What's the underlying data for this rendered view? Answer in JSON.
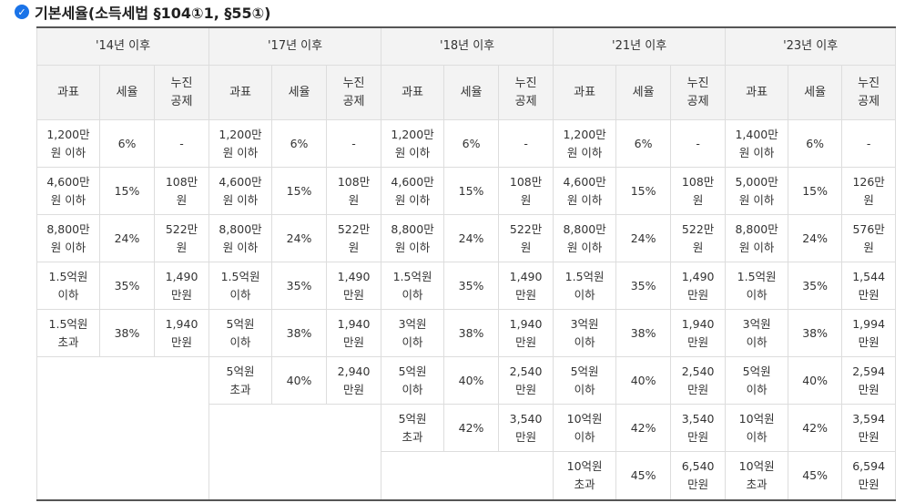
{
  "title": "기본세율(소득세법 §104①1, §55①)",
  "periods": [
    "'14년 이후",
    "'17년 이후",
    "'18년 이후",
    "'21년 이후",
    "'23년 이후"
  ],
  "subheaders": [
    "과표",
    "세율",
    "누진\n공제"
  ],
  "p14": [
    [
      "1,200만\n원 이하",
      "6%",
      "-"
    ],
    [
      "4,600만\n원 이하",
      "15%",
      "108만\n원"
    ],
    [
      "8,800만\n원 이하",
      "24%",
      "522만\n원"
    ],
    [
      "1.5억원\n이하",
      "35%",
      "1,490\n만원"
    ],
    [
      "1.5억원\n초과",
      "38%",
      "1,940\n만원"
    ]
  ],
  "p17": [
    [
      "1,200만\n원 이하",
      "6%",
      "-"
    ],
    [
      "4,600만\n원 이하",
      "15%",
      "108만\n원"
    ],
    [
      "8,800만\n원 이하",
      "24%",
      "522만\n원"
    ],
    [
      "1.5억원\n이하",
      "35%",
      "1,490\n만원"
    ],
    [
      "5억원\n이하",
      "38%",
      "1,940\n만원"
    ],
    [
      "5억원\n초과",
      "40%",
      "2,940\n만원"
    ]
  ],
  "p18": [
    [
      "1,200만\n원 이하",
      "6%",
      "-"
    ],
    [
      "4,600만\n원 이하",
      "15%",
      "108만\n원"
    ],
    [
      "8,800만\n원 이하",
      "24%",
      "522만\n원"
    ],
    [
      "1.5억원\n이하",
      "35%",
      "1,490\n만원"
    ],
    [
      "3억원\n이하",
      "38%",
      "1,940\n만원"
    ],
    [
      "5억원\n이하",
      "40%",
      "2,540\n만원"
    ],
    [
      "5억원\n초과",
      "42%",
      "3,540\n만원"
    ]
  ],
  "p21": [
    [
      "1,200만\n원 이하",
      "6%",
      "-"
    ],
    [
      "4,600만\n원 이하",
      "15%",
      "108만\n원"
    ],
    [
      "8,800만\n원 이하",
      "24%",
      "522만\n원"
    ],
    [
      "1.5억원\n이하",
      "35%",
      "1,490\n만원"
    ],
    [
      "3억원\n이하",
      "38%",
      "1,940\n만원"
    ],
    [
      "5억원\n이하",
      "40%",
      "2,540\n만원"
    ],
    [
      "10억원\n이하",
      "42%",
      "3,540\n만원"
    ],
    [
      "10억원\n초과",
      "45%",
      "6,540\n만원"
    ]
  ],
  "p23": [
    [
      "1,400만\n원 이하",
      "6%",
      "-"
    ],
    [
      "5,000만\n원 이하",
      "15%",
      "126만\n원"
    ],
    [
      "8,800만\n원 이하",
      "24%",
      "576만\n원"
    ],
    [
      "1.5억원\n이하",
      "35%",
      "1,544\n만원"
    ],
    [
      "3억원\n이하",
      "38%",
      "1,994\n만원"
    ],
    [
      "5억원\n이하",
      "40%",
      "2,594\n만원"
    ],
    [
      "10억원\n이하",
      "42%",
      "3,594\n만원"
    ],
    [
      "10억원\n초과",
      "45%",
      "6,594\n만원"
    ]
  ]
}
